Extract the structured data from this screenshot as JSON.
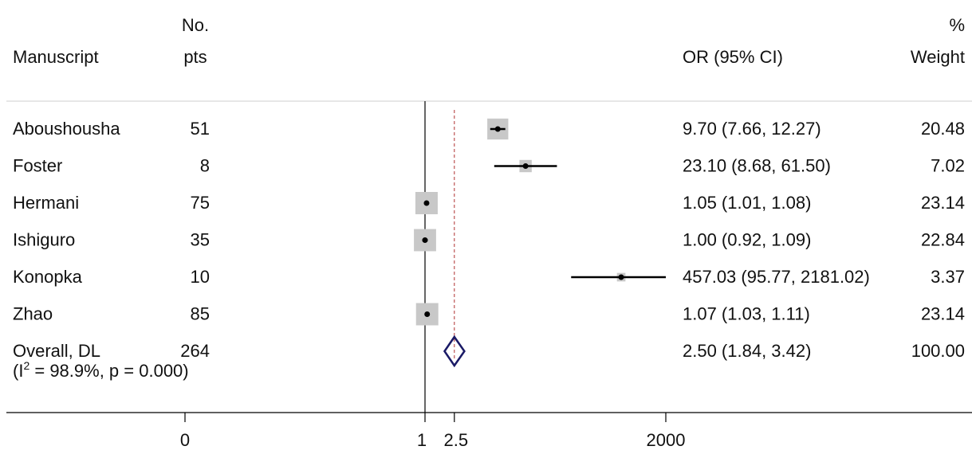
{
  "chart_data": {
    "type": "forest",
    "x_scale": "log",
    "headers": {
      "label": "Manuscript",
      "n_top": "No.",
      "n_bottom": "pts",
      "effect": "OR (95% CI)",
      "weight_top": "%",
      "weight_bottom": "Weight"
    },
    "studies": [
      {
        "name": "Aboushousha",
        "n": "51",
        "or": 9.7,
        "lo": 7.66,
        "hi": 12.27,
        "ci_text": "9.70 (7.66, 12.27)",
        "weight": 20.48,
        "weight_text": "20.48"
      },
      {
        "name": "Foster",
        "n": "8",
        "or": 23.1,
        "lo": 8.68,
        "hi": 61.5,
        "ci_text": "23.10 (8.68, 61.50)",
        "weight": 7.02,
        "weight_text": "7.02"
      },
      {
        "name": "Hermani",
        "n": "75",
        "or": 1.05,
        "lo": 1.01,
        "hi": 1.08,
        "ci_text": "1.05 (1.01, 1.08)",
        "weight": 23.14,
        "weight_text": "23.14"
      },
      {
        "name": "Ishiguro",
        "n": "35",
        "or": 1.0,
        "lo": 0.92,
        "hi": 1.09,
        "ci_text": "1.00 (0.92, 1.09)",
        "weight": 22.84,
        "weight_text": "22.84"
      },
      {
        "name": "Konopka",
        "n": "10",
        "or": 457.03,
        "lo": 95.77,
        "hi": 2181.02,
        "ci_text": "457.03 (95.77, 2181.02)",
        "weight": 3.37,
        "weight_text": "3.37"
      },
      {
        "name": "Zhao",
        "n": "85",
        "or": 1.07,
        "lo": 1.03,
        "hi": 1.11,
        "ci_text": "1.07 (1.03, 1.11)",
        "weight": 23.14,
        "weight_text": "23.14"
      }
    ],
    "overall": {
      "name": "Overall, DL",
      "n": "264",
      "or": 2.5,
      "lo": 1.84,
      "hi": 3.42,
      "ci_text": "2.50 (1.84, 3.42)",
      "weight_text": "100.00"
    },
    "heterogeneity_prefix": "(I",
    "heterogeneity_sup": "2",
    "heterogeneity_rest": " = 98.9%, p = 0.000)",
    "xticks": [
      {
        "value": 0,
        "label": "0"
      },
      {
        "value": 1,
        "label": "1"
      },
      {
        "value": 2.5,
        "label": "2.5"
      },
      {
        "value": 2000,
        "label": "2000"
      }
    ],
    "null_line": 1,
    "overall_line": 2.5,
    "colors": {
      "box": "#c8c8c8",
      "line": "#000000",
      "diamond": "#1a1a66",
      "overall_line": "#b03030"
    }
  }
}
